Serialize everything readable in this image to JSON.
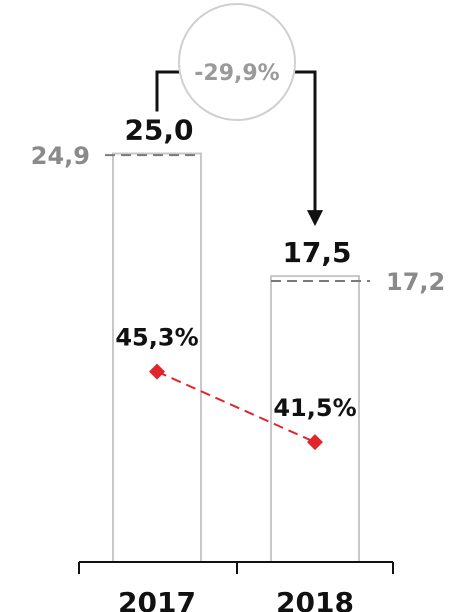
{
  "chart_data": {
    "type": "bar",
    "categories": [
      "2017",
      "2018"
    ],
    "series": [
      {
        "values": [
          25.0,
          17.5
        ],
        "labels": [
          "25,0",
          "17,5"
        ]
      }
    ],
    "reference_values": [
      24.9,
      17.2
    ],
    "reference_labels": [
      "24,9",
      "17,2"
    ],
    "ratio_series": {
      "values": [
        45.3,
        41.5
      ],
      "labels": [
        "45,3%",
        "41,5%"
      ],
      "color": "#e0262b"
    },
    "change_label": "-29,9%",
    "colors": {
      "bar_outline": "#c8c8c8",
      "reference_line": "#7a7a7a",
      "reference_text": "#8a8a8a",
      "value_text": "#111111",
      "change_text": "#9a9a9a",
      "change_circle": "#d0d0d0",
      "arrow": "#111111",
      "marker": "#e0262b"
    }
  }
}
